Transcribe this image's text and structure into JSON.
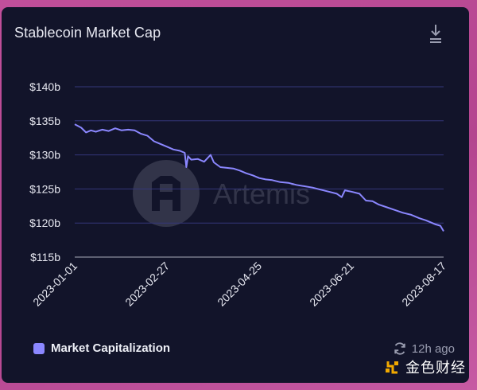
{
  "card": {
    "title": "Stablecoin Market Cap"
  },
  "footer": {
    "updated": "12h ago"
  },
  "watermark": {
    "text": "金色财经"
  },
  "colors": {
    "line": "#8b87ff",
    "grid": "#34377a",
    "text": "#e6e7f0",
    "muted": "#9a9db0",
    "brand": "Artemis"
  },
  "chart_data": {
    "type": "line",
    "title": "Stablecoin Market Cap",
    "xlabel": "",
    "ylabel": "",
    "ylim": [
      115,
      140
    ],
    "y_ticks": [
      140,
      135,
      130,
      125,
      120,
      115
    ],
    "y_tick_labels": [
      "$140b",
      "$135b",
      "$130b",
      "$125b",
      "$120b",
      "$115b"
    ],
    "x_tick_labels": [
      "2023-01-01",
      "2023-02-27",
      "2023-04-25",
      "2023-06-21",
      "2023-08-17"
    ],
    "grid": true,
    "legend": "bottom-left",
    "series": [
      {
        "name": "Market Capitalization",
        "x": [
          "2023-01-01",
          "2023-01-05",
          "2023-01-08",
          "2023-01-11",
          "2023-01-14",
          "2023-01-18",
          "2023-01-22",
          "2023-01-26",
          "2023-01-30",
          "2023-02-03",
          "2023-02-07",
          "2023-02-11",
          "2023-02-15",
          "2023-02-19",
          "2023-02-23",
          "2023-02-27",
          "2023-03-03",
          "2023-03-07",
          "2023-03-10",
          "2023-03-11",
          "2023-03-12",
          "2023-03-14",
          "2023-03-18",
          "2023-03-22",
          "2023-03-26",
          "2023-03-28",
          "2023-04-01",
          "2023-04-05",
          "2023-04-09",
          "2023-04-13",
          "2023-04-17",
          "2023-04-21",
          "2023-04-25",
          "2023-04-29",
          "2023-05-03",
          "2023-05-08",
          "2023-05-13",
          "2023-05-18",
          "2023-05-23",
          "2023-05-28",
          "2023-06-02",
          "2023-06-07",
          "2023-06-12",
          "2023-06-15",
          "2023-06-17",
          "2023-06-19",
          "2023-06-21",
          "2023-06-26",
          "2023-06-30",
          "2023-07-04",
          "2023-07-08",
          "2023-07-13",
          "2023-07-18",
          "2023-07-23",
          "2023-07-28",
          "2023-08-02",
          "2023-08-06",
          "2023-08-09",
          "2023-08-12",
          "2023-08-15",
          "2023-08-17"
        ],
        "values": [
          134.5,
          134.0,
          133.3,
          133.6,
          133.4,
          133.7,
          133.5,
          133.9,
          133.6,
          133.7,
          133.6,
          133.1,
          132.8,
          132.0,
          131.6,
          131.2,
          130.8,
          130.6,
          130.3,
          128.2,
          129.8,
          129.3,
          129.4,
          129.0,
          130.0,
          128.9,
          128.2,
          128.1,
          128.0,
          127.7,
          127.3,
          127.0,
          126.6,
          126.4,
          126.3,
          126.0,
          125.9,
          125.6,
          125.4,
          125.2,
          124.9,
          124.6,
          124.3,
          123.8,
          124.8,
          124.7,
          124.6,
          124.3,
          123.3,
          123.2,
          122.7,
          122.3,
          121.9,
          121.5,
          121.2,
          120.7,
          120.4,
          120.1,
          119.8,
          119.6,
          118.8
        ]
      }
    ]
  }
}
